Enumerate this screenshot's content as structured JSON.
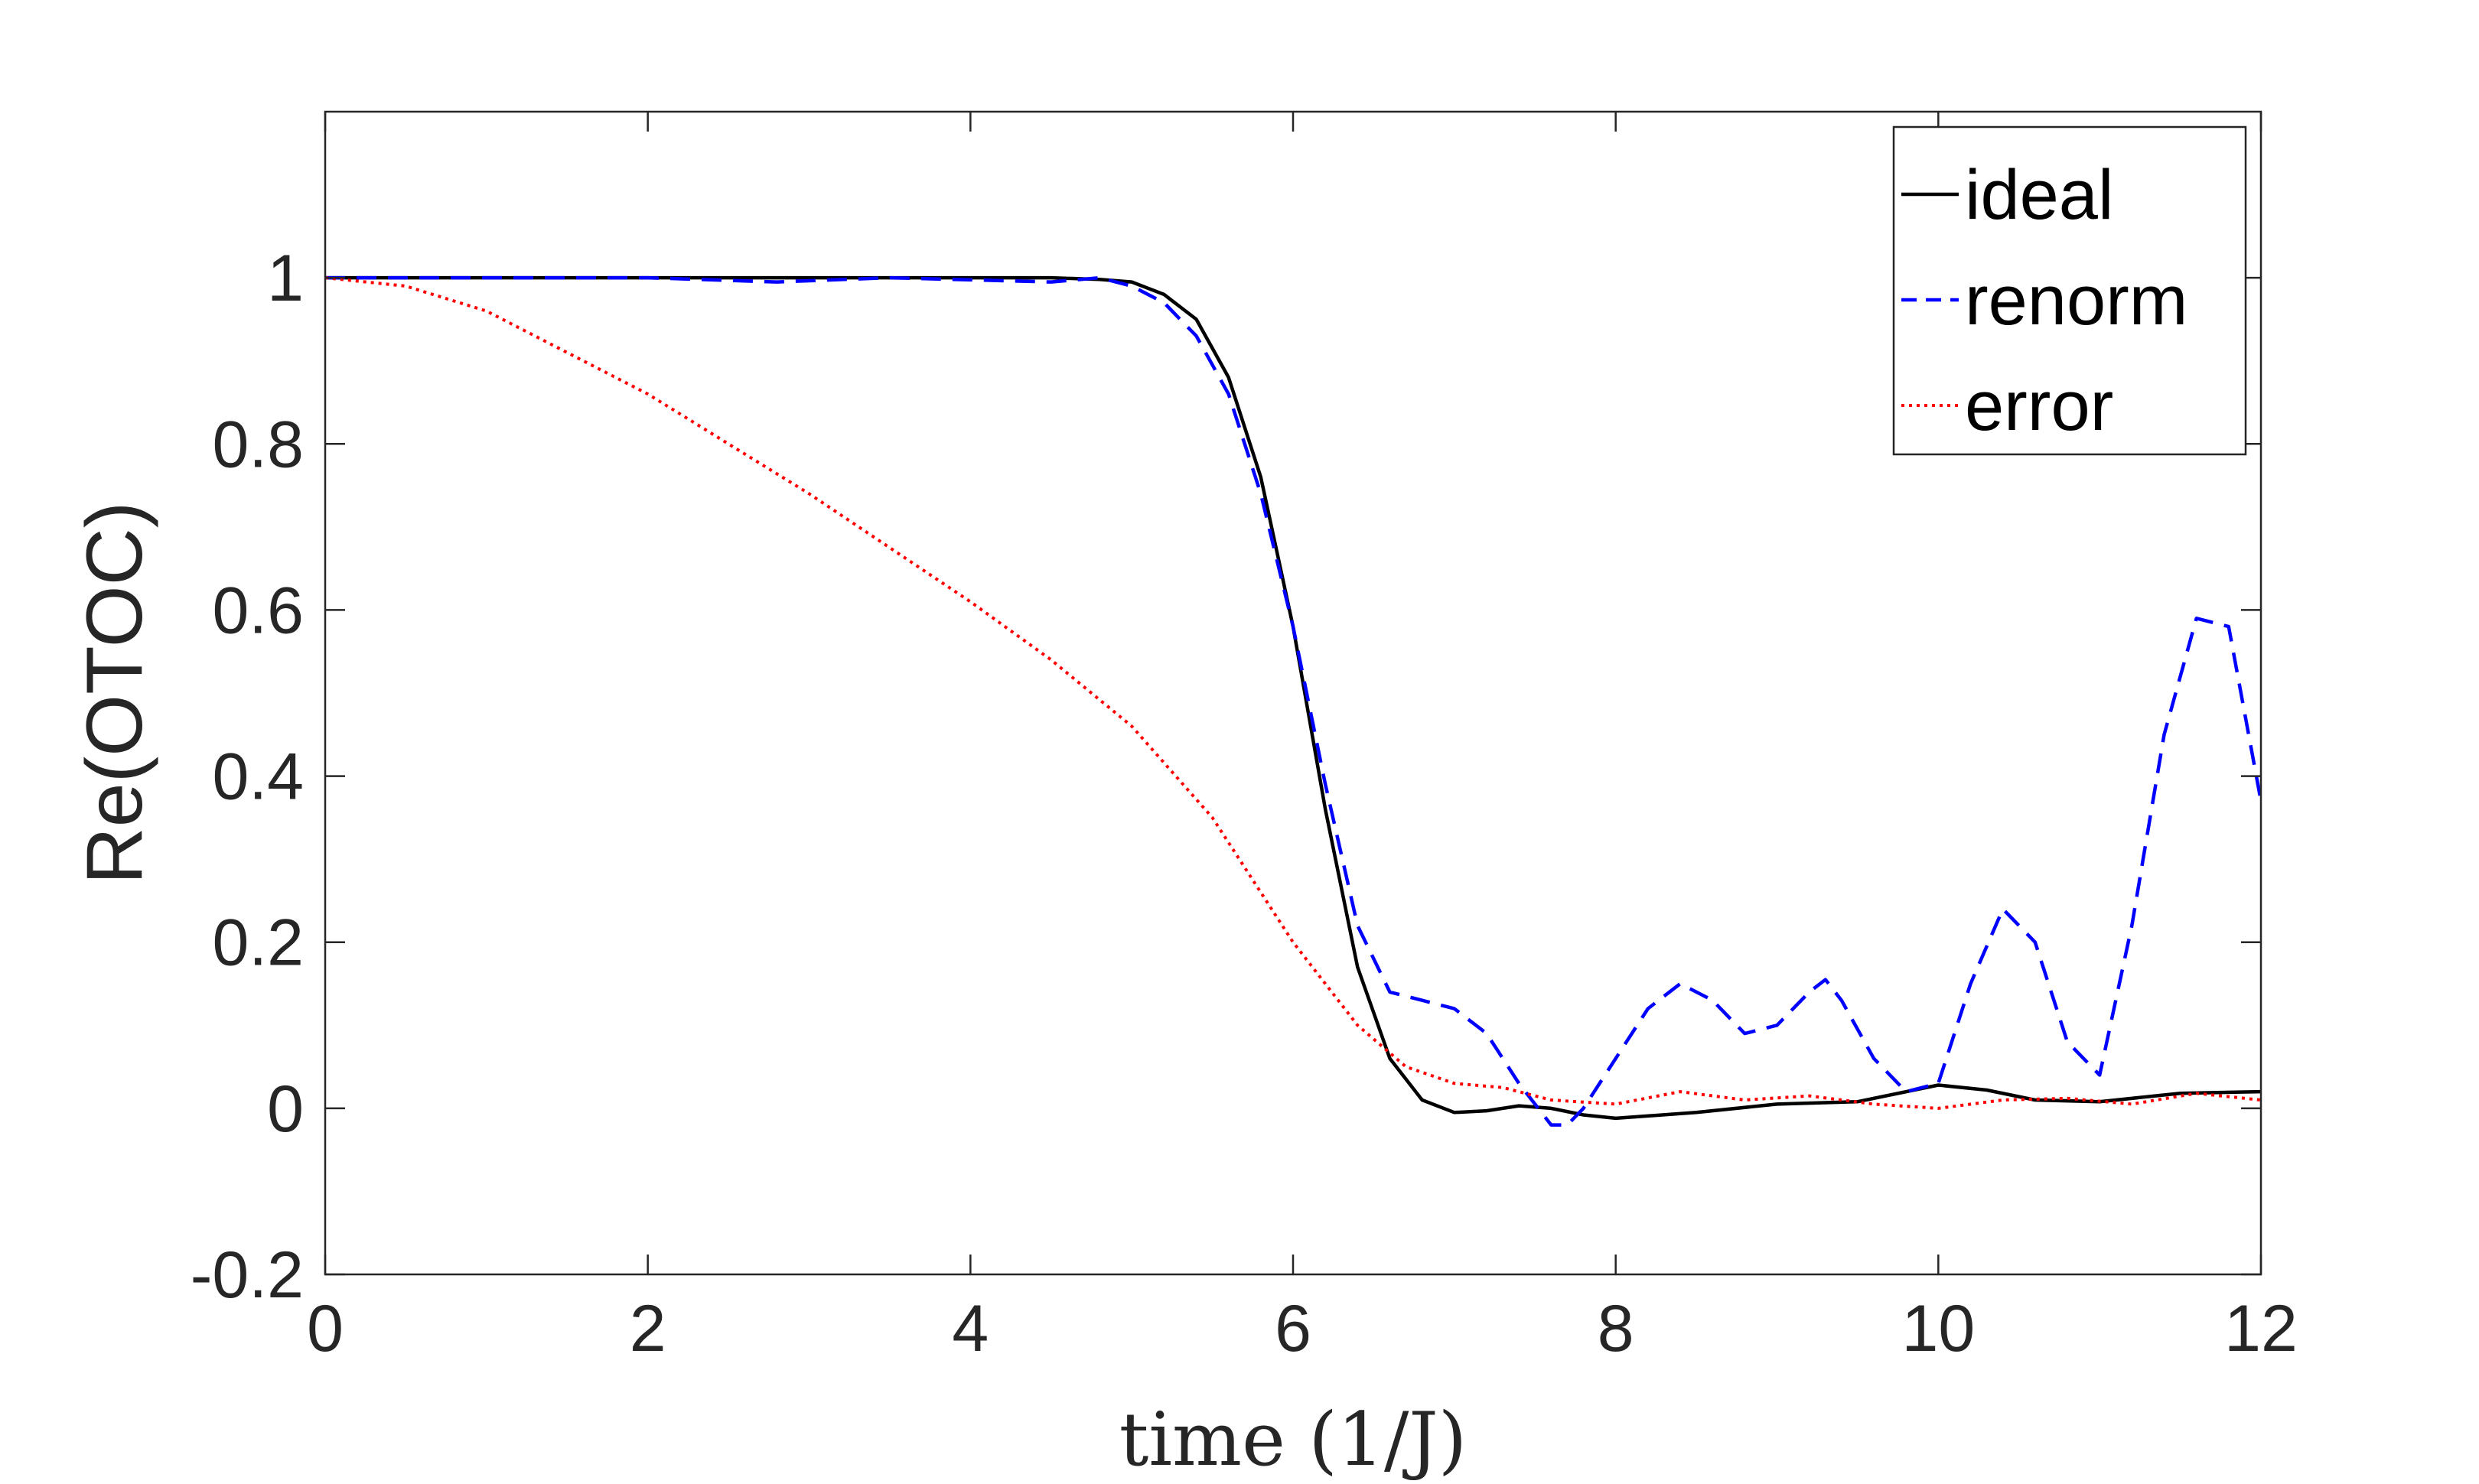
{
  "chart_data": {
    "type": "line",
    "title": "",
    "xlabel": "time (1/J)",
    "ylabel": "Re(OTOC)",
    "xlim": [
      0,
      12
    ],
    "ylim": [
      -0.2,
      1.2
    ],
    "xticks": [
      0,
      2,
      4,
      6,
      8,
      10,
      12
    ],
    "xtick_labels": [
      "0",
      "2",
      "4",
      "6",
      "8",
      "10",
      "12"
    ],
    "yticks": [
      -0.2,
      0,
      0.2,
      0.4,
      0.6,
      0.8,
      1
    ],
    "ytick_labels": [
      "-0.2",
      "0",
      "0.2",
      "0.4",
      "0.6",
      "0.8",
      "1"
    ],
    "grid": false,
    "legend_position": "top-right",
    "series": [
      {
        "name": "ideal",
        "color": "#000000",
        "style": "solid",
        "x": [
          0,
          1,
          2,
          3,
          4,
          4.5,
          4.8,
          5.0,
          5.2,
          5.4,
          5.6,
          5.8,
          6.0,
          6.2,
          6.4,
          6.6,
          6.8,
          7.0,
          7.2,
          7.4,
          7.6,
          7.8,
          8.0,
          8.5,
          9.0,
          9.5,
          10.0,
          10.3,
          10.6,
          11.0,
          11.5,
          12.0
        ],
        "y": [
          1.0,
          1.0,
          1.0,
          1.0,
          1.0,
          1.0,
          0.998,
          0.995,
          0.98,
          0.95,
          0.88,
          0.76,
          0.58,
          0.36,
          0.17,
          0.06,
          0.01,
          -0.005,
          -0.003,
          0.003,
          0.0,
          -0.008,
          -0.012,
          -0.005,
          0.005,
          0.008,
          0.028,
          0.022,
          0.01,
          0.008,
          0.018,
          0.02
        ]
      },
      {
        "name": "renorm",
        "color": "#0000ff",
        "style": "dashed",
        "x": [
          0,
          1,
          2,
          2.8,
          3.5,
          4.5,
          4.8,
          5.0,
          5.2,
          5.4,
          5.6,
          5.8,
          6.0,
          6.2,
          6.4,
          6.6,
          6.8,
          7.0,
          7.2,
          7.4,
          7.6,
          7.7,
          7.8,
          8.0,
          8.2,
          8.4,
          8.6,
          8.8,
          9.0,
          9.2,
          9.3,
          9.4,
          9.6,
          9.8,
          10.0,
          10.2,
          10.4,
          10.6,
          10.8,
          11.0,
          11.2,
          11.4,
          11.6,
          11.8,
          12.0
        ],
        "y": [
          1.0,
          1.0,
          1.0,
          0.995,
          1.0,
          0.995,
          1.0,
          0.99,
          0.97,
          0.93,
          0.86,
          0.74,
          0.58,
          0.39,
          0.22,
          0.14,
          0.13,
          0.12,
          0.09,
          0.03,
          -0.02,
          -0.02,
          0.0,
          0.06,
          0.12,
          0.15,
          0.13,
          0.09,
          0.1,
          0.14,
          0.155,
          0.13,
          0.06,
          0.02,
          0.03,
          0.15,
          0.24,
          0.2,
          0.08,
          0.04,
          0.22,
          0.45,
          0.59,
          0.58,
          0.37
        ]
      },
      {
        "name": "error",
        "color": "#ff0000",
        "style": "dotted",
        "x": [
          0,
          0.5,
          1.0,
          1.5,
          2.0,
          2.5,
          3.0,
          3.5,
          4.0,
          4.5,
          5.0,
          5.5,
          6.0,
          6.4,
          6.7,
          7.0,
          7.3,
          7.6,
          8.0,
          8.4,
          8.8,
          9.2,
          9.6,
          10.0,
          10.4,
          10.8,
          11.2,
          11.6,
          12.0
        ],
        "y": [
          1.0,
          0.99,
          0.96,
          0.91,
          0.86,
          0.8,
          0.74,
          0.675,
          0.61,
          0.54,
          0.46,
          0.35,
          0.2,
          0.1,
          0.05,
          0.03,
          0.025,
          0.01,
          0.005,
          0.02,
          0.01,
          0.015,
          0.005,
          0.0,
          0.01,
          0.012,
          0.005,
          0.018,
          0.01
        ]
      }
    ]
  }
}
